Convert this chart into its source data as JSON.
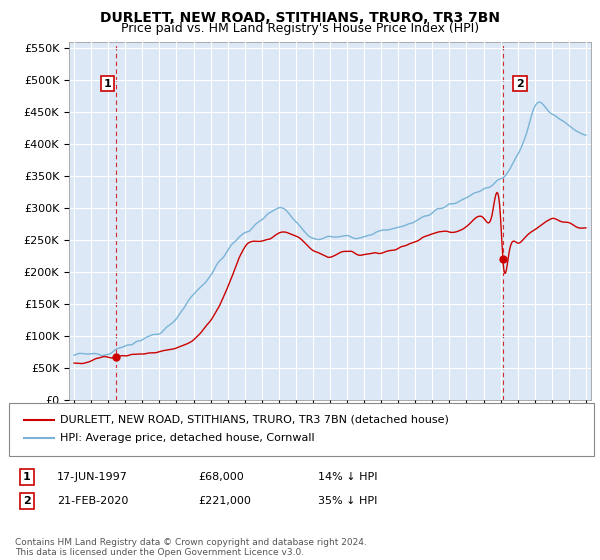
{
  "title": "DURLETT, NEW ROAD, STITHIANS, TRURO, TR3 7BN",
  "subtitle": "Price paid vs. HM Land Registry's House Price Index (HPI)",
  "ylabel_ticks": [
    "£0",
    "£50K",
    "£100K",
    "£150K",
    "£200K",
    "£250K",
    "£300K",
    "£350K",
    "£400K",
    "£450K",
    "£500K",
    "£550K"
  ],
  "ytick_values": [
    0,
    50000,
    100000,
    150000,
    200000,
    250000,
    300000,
    350000,
    400000,
    450000,
    500000,
    550000
  ],
  "ylim": [
    0,
    560000
  ],
  "xlim_start": 1994.7,
  "xlim_end": 2025.3,
  "marker1_date": 1997.46,
  "marker1_value": 68000,
  "marker1_label": "1",
  "marker2_date": 2020.13,
  "marker2_value": 221000,
  "marker2_label": "2",
  "vline1_x": 1997.46,
  "vline2_x": 2020.13,
  "legend_line1_color": "#cc0000",
  "legend_line1_label": "DURLETT, NEW ROAD, STITHIANS, TRURO, TR3 7BN (detached house)",
  "legend_line2_color": "#7ab3d8",
  "legend_line2_label": "HPI: Average price, detached house, Cornwall",
  "annotation1_date": "17-JUN-1997",
  "annotation1_price": "£68,000",
  "annotation1_hpi": "14% ↓ HPI",
  "annotation2_date": "21-FEB-2020",
  "annotation2_price": "£221,000",
  "annotation2_hpi": "35% ↓ HPI",
  "footer": "Contains HM Land Registry data © Crown copyright and database right 2024.\nThis data is licensed under the Open Government Licence v3.0.",
  "background_color": "#dce8f5",
  "grid_color": "#ffffff",
  "title_fontsize": 10,
  "subtitle_fontsize": 9,
  "hpi_line_color": "#7ab3d8",
  "price_line_color": "#cc0000"
}
